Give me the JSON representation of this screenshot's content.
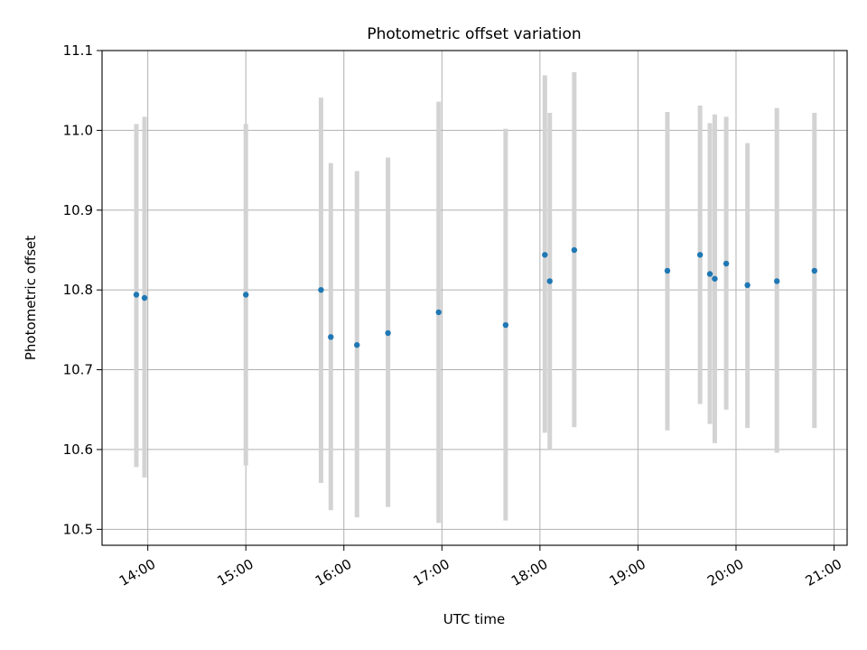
{
  "chart_data": {
    "type": "scatter",
    "title": "Photometric offset variation",
    "xlabel": "UTC time",
    "ylabel": "Photometric offset",
    "xlim": [
      "13:32",
      "21:08"
    ],
    "ylim": [
      10.48,
      11.1
    ],
    "x_ticks": [
      "14:00",
      "15:00",
      "16:00",
      "17:00",
      "18:00",
      "19:00",
      "20:00",
      "21:00"
    ],
    "y_ticks": [
      "10.5",
      "10.6",
      "10.7",
      "10.8",
      "10.9",
      "11.0",
      "11.1"
    ],
    "grid": true,
    "marker_color": "#1f77b4",
    "errorbar_color": "#d3d3d3",
    "series": [
      {
        "points": [
          {
            "x": "13:53",
            "y": 10.794,
            "y_low": 10.578,
            "y_high": 11.008
          },
          {
            "x": "13:58",
            "y": 10.79,
            "y_low": 10.565,
            "y_high": 11.017
          },
          {
            "x": "15:00",
            "y": 10.794,
            "y_low": 10.58,
            "y_high": 11.008
          },
          {
            "x": "15:46",
            "y": 10.8,
            "y_low": 10.558,
            "y_high": 11.041
          },
          {
            "x": "15:52",
            "y": 10.741,
            "y_low": 10.524,
            "y_high": 10.959
          },
          {
            "x": "16:08",
            "y": 10.731,
            "y_low": 10.515,
            "y_high": 10.949
          },
          {
            "x": "16:27",
            "y": 10.746,
            "y_low": 10.528,
            "y_high": 10.966
          },
          {
            "x": "16:58",
            "y": 10.772,
            "y_low": 10.508,
            "y_high": 11.036
          },
          {
            "x": "17:39",
            "y": 10.756,
            "y_low": 10.511,
            "y_high": 11.002
          },
          {
            "x": "18:03",
            "y": 10.844,
            "y_low": 10.621,
            "y_high": 11.069
          },
          {
            "x": "18:06",
            "y": 10.811,
            "y_low": 10.601,
            "y_high": 11.022
          },
          {
            "x": "18:21",
            "y": 10.85,
            "y_low": 10.628,
            "y_high": 11.073
          },
          {
            "x": "19:18",
            "y": 10.824,
            "y_low": 10.624,
            "y_high": 11.023
          },
          {
            "x": "19:38",
            "y": 10.844,
            "y_low": 10.657,
            "y_high": 11.031
          },
          {
            "x": "19:44",
            "y": 10.82,
            "y_low": 10.632,
            "y_high": 11.009
          },
          {
            "x": "19:47",
            "y": 10.814,
            "y_low": 10.608,
            "y_high": 11.02
          },
          {
            "x": "19:54",
            "y": 10.833,
            "y_low": 10.65,
            "y_high": 11.017
          },
          {
            "x": "20:07",
            "y": 10.806,
            "y_low": 10.627,
            "y_high": 10.984
          },
          {
            "x": "20:25",
            "y": 10.811,
            "y_low": 10.596,
            "y_high": 11.028
          },
          {
            "x": "20:48",
            "y": 10.824,
            "y_low": 10.627,
            "y_high": 11.022
          }
        ]
      }
    ]
  }
}
